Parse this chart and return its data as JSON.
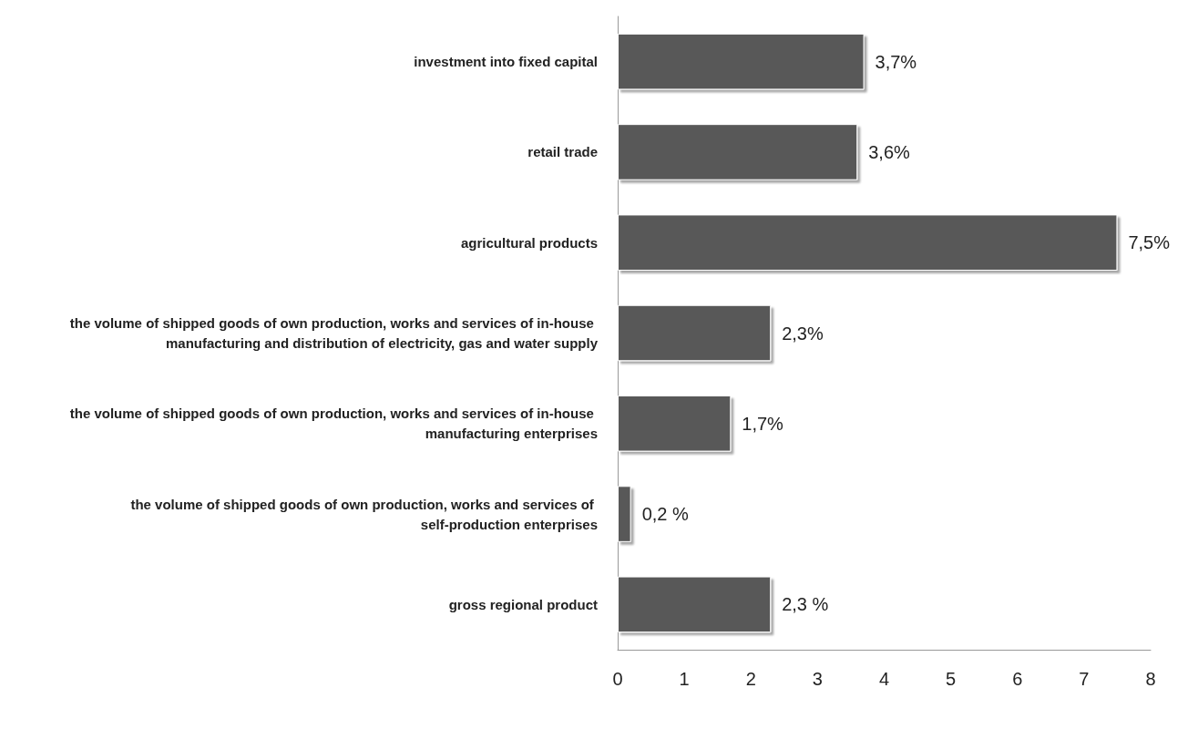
{
  "chart_data": {
    "type": "bar",
    "orientation": "horizontal",
    "categories": [
      "investment into fixed capital",
      "retail trade",
      "agricultural products",
      "the volume of shipped goods of own production, works and services of in-house manufacturing and distribution of electricity, gas and water supply",
      "the volume of shipped goods of own production, works and services of in-house manufacturing enterprises",
      "the volume of shipped goods of own production, works and services of self-production enterprises",
      "gross regional product"
    ],
    "values": [
      3.7,
      3.6,
      7.5,
      2.3,
      1.7,
      0.2,
      2.3
    ],
    "value_labels": [
      "3,7%",
      "3,6%",
      "7,5%",
      "2,3%",
      "1,7%",
      "0,2 %",
      "2,3 %"
    ],
    "color": "#595959",
    "xlim": [
      0,
      8
    ],
    "xticks": [
      0,
      1,
      2,
      3,
      4,
      5,
      6,
      7,
      8
    ],
    "grid": false
  }
}
